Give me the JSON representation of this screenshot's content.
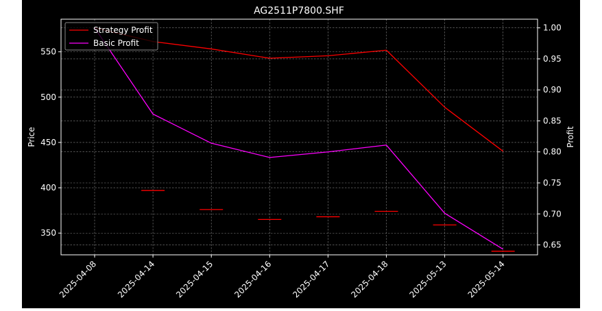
{
  "chart_data": {
    "type": "line",
    "title": "AG2511P7800.SHF",
    "ylabel_left": "Price",
    "ylabel_right": "Profit",
    "categories": [
      "2025-04-08",
      "2025-04-14",
      "2025-04-15",
      "2025-04-16",
      "2025-04-17",
      "2025-04-18",
      "2025-05-13",
      "2025-05-14"
    ],
    "ylim_left": [
      326,
      586
    ],
    "yticks_left": [
      350,
      400,
      450,
      500,
      550
    ],
    "ylim_right": [
      0.634,
      1.014
    ],
    "yticks_right": [
      0.65,
      0.7,
      0.75,
      0.8,
      0.85,
      0.9,
      0.95,
      1.0
    ],
    "grid": true,
    "legend_position": "top-left",
    "series": [
      {
        "name": "Strategy Profit",
        "axis": "right",
        "color": "#ff0000",
        "values": [
          1.0,
          0.978,
          0.966,
          0.951,
          0.955,
          0.964,
          0.872,
          0.801
        ]
      },
      {
        "name": "Basic Profit",
        "axis": "right",
        "color": "#ff00ff",
        "values": [
          1.0,
          0.861,
          0.814,
          0.791,
          0.8,
          0.811,
          0.701,
          0.643
        ]
      }
    ],
    "price_markers": {
      "axis": "left",
      "color": "#ff0000",
      "values": [
        null,
        397,
        376,
        365,
        368,
        374,
        359,
        330
      ]
    }
  }
}
